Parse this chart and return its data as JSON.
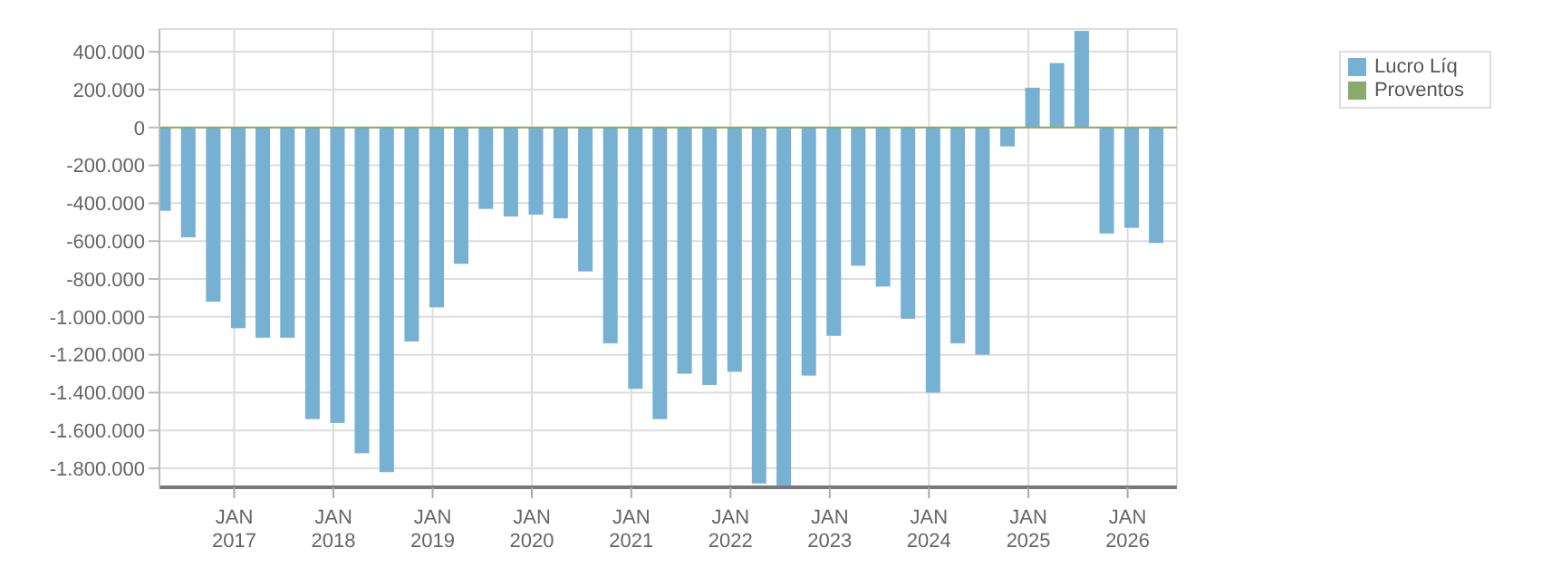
{
  "chart_data": {
    "type": "bar",
    "x": [
      "2016-04",
      "2016-07",
      "2016-10",
      "2017-01",
      "2017-04",
      "2017-07",
      "2017-10",
      "2018-01",
      "2018-04",
      "2018-07",
      "2018-10",
      "2019-01",
      "2019-04",
      "2019-07",
      "2019-10",
      "2020-01",
      "2020-04",
      "2020-07",
      "2020-10",
      "2021-01",
      "2021-04",
      "2021-07",
      "2021-10",
      "2022-01",
      "2022-04",
      "2022-07",
      "2022-10",
      "2023-01",
      "2023-04",
      "2023-07",
      "2023-10",
      "2024-01",
      "2024-04",
      "2024-07",
      "2024-10",
      "2025-01",
      "2025-04",
      "2025-07",
      "2025-10",
      "2026-01",
      "2026-04"
    ],
    "series": [
      {
        "name": "Lucro Líq",
        "color": "#76b0d3",
        "values": [
          -440000,
          -580000,
          -920000,
          -1060000,
          -1110000,
          -1110000,
          -1540000,
          -1560000,
          -1720000,
          -1820000,
          -1130000,
          -950000,
          -720000,
          -430000,
          -470000,
          -460000,
          -480000,
          -760000,
          -1140000,
          -1380000,
          -1540000,
          -1300000,
          -1360000,
          -1290000,
          -1880000,
          -1890000,
          -1310000,
          -1100000,
          -730000,
          -840000,
          -1010000,
          -1400000,
          -1140000,
          -1200000,
          -100000,
          210000,
          340000,
          510000,
          -560000,
          -530000,
          -610000
        ]
      },
      {
        "name": "Proventos",
        "color": "#8aab6a",
        "values": [
          0,
          0,
          0,
          0,
          0,
          0,
          0,
          0,
          0,
          0,
          0,
          0,
          0,
          0,
          0,
          0,
          0,
          0,
          0,
          0,
          0,
          0,
          0,
          0,
          0,
          0,
          0,
          0,
          0,
          0,
          0,
          0,
          0,
          0,
          0,
          0,
          0,
          0,
          0,
          0,
          0
        ]
      }
    ],
    "xlim": [
      "2016-04",
      "2026-07"
    ],
    "xticks": [
      {
        "value": "2017-01",
        "label": "JAN 2017"
      },
      {
        "value": "2018-01",
        "label": "JAN 2018"
      },
      {
        "value": "2019-01",
        "label": "JAN 2019"
      },
      {
        "value": "2020-01",
        "label": "JAN 2020"
      },
      {
        "value": "2021-01",
        "label": "JAN 2021"
      },
      {
        "value": "2022-01",
        "label": "JAN 2022"
      },
      {
        "value": "2023-01",
        "label": "JAN 2023"
      },
      {
        "value": "2024-01",
        "label": "JAN 2024"
      },
      {
        "value": "2025-01",
        "label": "JAN 2025"
      },
      {
        "value": "2026-01",
        "label": "JAN 2026"
      }
    ],
    "ylim": [
      -1900000,
      520000
    ],
    "yticks": [
      {
        "value": 400000,
        "label": "400.000"
      },
      {
        "value": 200000,
        "label": "200.000"
      },
      0,
      {
        "value": -200000,
        "label": "-200.000"
      },
      {
        "value": -400000,
        "label": "-400.000"
      },
      {
        "value": -600000,
        "label": "-600.000"
      },
      {
        "value": -800000,
        "label": "-800.000"
      },
      {
        "value": -1000000,
        "label": "-1.000.000"
      },
      {
        "value": -1200000,
        "label": "-1.200.000"
      },
      {
        "value": -1400000,
        "label": "-1.400.000"
      },
      {
        "value": -1600000,
        "label": "-1.600.000"
      },
      {
        "value": -1800000,
        "label": "-1.800.000"
      }
    ],
    "ref_lines": [
      {
        "axis": "y",
        "value": 0,
        "label": null,
        "color": "#8aab6a"
      }
    ],
    "grid": true,
    "legend": "top right"
  }
}
